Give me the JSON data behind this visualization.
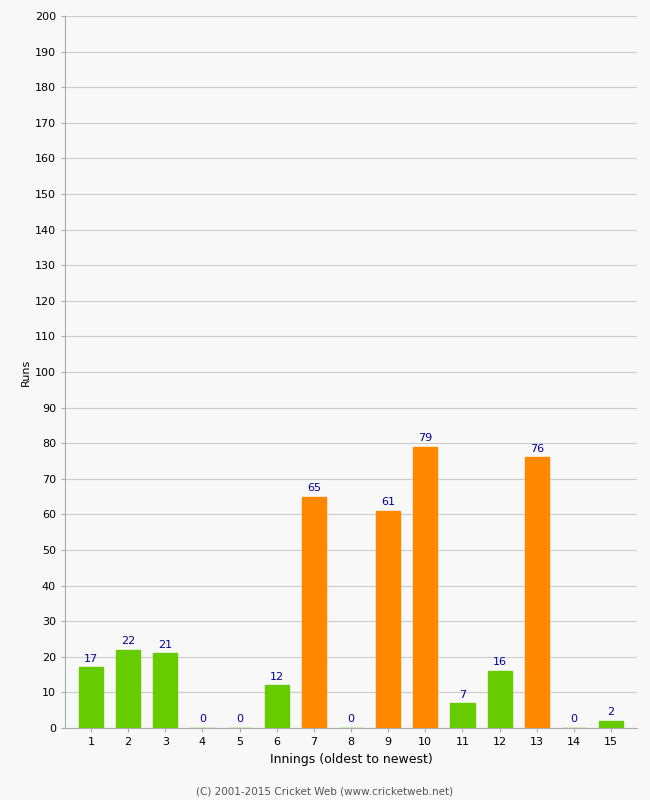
{
  "xlabel": "Innings (oldest to newest)",
  "ylabel": "Runs",
  "categories": [
    1,
    2,
    3,
    4,
    5,
    6,
    7,
    8,
    9,
    10,
    11,
    12,
    13,
    14,
    15
  ],
  "values": [
    17,
    22,
    21,
    0,
    0,
    12,
    65,
    0,
    61,
    79,
    7,
    16,
    76,
    0,
    2
  ],
  "bar_colors": [
    "#66cc00",
    "#66cc00",
    "#66cc00",
    "#66cc00",
    "#66cc00",
    "#66cc00",
    "#ff8800",
    "#66cc00",
    "#ff8800",
    "#ff8800",
    "#66cc00",
    "#66cc00",
    "#ff8800",
    "#66cc00",
    "#66cc00"
  ],
  "ylim": [
    0,
    200
  ],
  "yticks": [
    0,
    10,
    20,
    30,
    40,
    50,
    60,
    70,
    80,
    90,
    100,
    110,
    120,
    130,
    140,
    150,
    160,
    170,
    180,
    190,
    200
  ],
  "label_color": "#000099",
  "background_color": "#f8f8f8",
  "grid_color": "#cccccc",
  "footer": "(C) 2001-2015 Cricket Web (www.cricketweb.net)",
  "bar_width": 0.65
}
